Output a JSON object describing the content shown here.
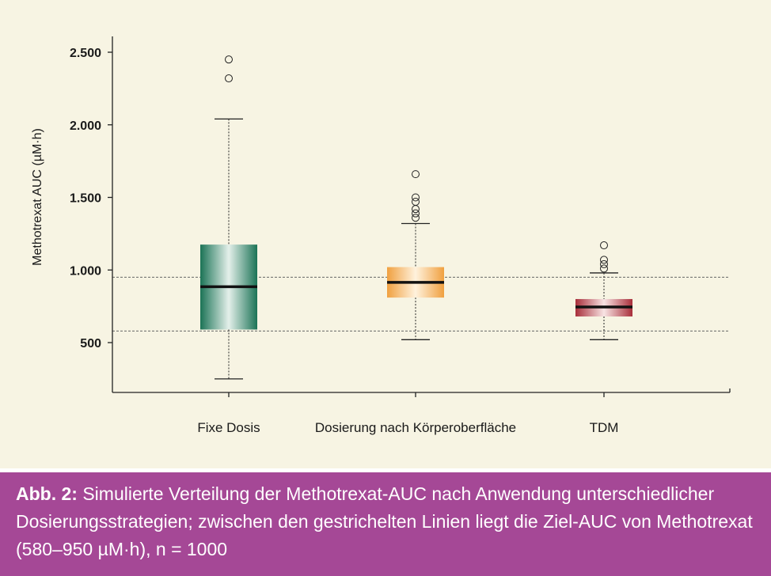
{
  "chart_data": {
    "type": "box",
    "ylabel": "Methotrexat AUC (µM·h)",
    "xlabel": "",
    "ylim": [
      250,
      2600
    ],
    "yticks": [
      500,
      1000,
      1500,
      2000,
      2500
    ],
    "ytick_labels": [
      "500",
      "1.000",
      "1.500",
      "2.000",
      "2.500"
    ],
    "reference_lines": [
      580,
      950
    ],
    "reference_line_style": "dashed",
    "categories": [
      "Fixe Dosis",
      "Dosierung nach Körperoberfläche",
      "TDM"
    ],
    "series": [
      {
        "whisker_low": 250,
        "q1": 590,
        "median": 885,
        "q3": 1175,
        "whisker_high": 2040,
        "outliers": [
          2320,
          2450
        ],
        "color": "#1e7a5c"
      },
      {
        "whisker_low": 520,
        "q1": 810,
        "median": 915,
        "q3": 1020,
        "whisker_high": 1320,
        "outliers": [
          1360,
          1390,
          1420,
          1470,
          1500,
          1660
        ],
        "color": "#f0a44a"
      },
      {
        "whisker_low": 520,
        "q1": 680,
        "median": 745,
        "q3": 800,
        "whisker_high": 980,
        "outliers": [
          1010,
          1040,
          1070,
          1170
        ],
        "color": "#b0353f"
      }
    ],
    "grid": false,
    "legend": "none"
  },
  "caption": {
    "label": "Abb. 2:",
    "text": " Simulierte Verteilung der Methotrexat-AUC nach Anwendung unterschiedlicher Dosierungsstrategien; zwischen den gestrichelten Linien liegt die Ziel-AUC von Methotrexat (580–950 µM·h), n = 1000"
  }
}
